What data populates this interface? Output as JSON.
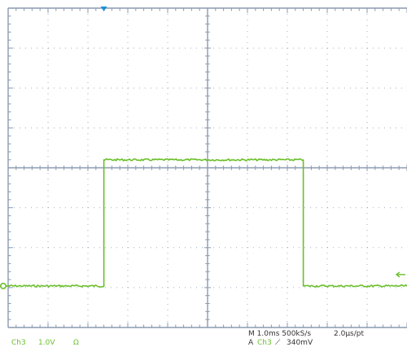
{
  "colors": {
    "grid": "#8a9ab0",
    "trace": "#6abf2a",
    "trigger_marker": "#1e90d6",
    "background": "#ffffff"
  },
  "readouts": {
    "channel": "Ch3",
    "volts_per_div": "1.0V",
    "coupling_symbol": "Ω",
    "timebase": "M 1.0ms 500kS/s",
    "sample_interval": "2.0µs/pt",
    "trigger_prefix": "A",
    "trigger_channel": "Ch3",
    "trigger_slope_symbol": "⟋",
    "trigger_level": "340mV"
  },
  "chart_data": {
    "type": "line",
    "title": "",
    "xlabel": "",
    "ylabel": "",
    "x_divisions": 10,
    "y_divisions": 8,
    "grid": true,
    "xlim": [
      0,
      10
    ],
    "ylim": [
      -4,
      4
    ],
    "series": [
      {
        "x": [
          0,
          2.4,
          2.4,
          7.4,
          7.4,
          10
        ],
        "y": [
          -2.96,
          -2.96,
          0.2,
          0.2,
          -2.96,
          -2.96
        ]
      }
    ],
    "markers": {
      "ground_reference_div": -2.96,
      "trigger_position_div": 2.4
    }
  }
}
